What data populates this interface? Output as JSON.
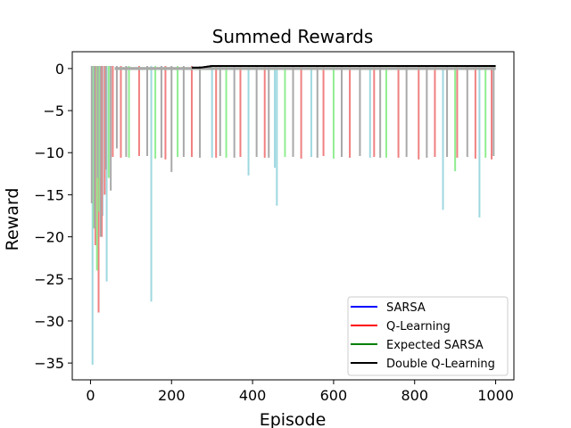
{
  "chart_data": {
    "type": "line",
    "title": "Summed Rewards",
    "xlabel": "Episode",
    "ylabel": "Reward",
    "xlim": [
      -45,
      1045
    ],
    "ylim": [
      -37,
      2
    ],
    "xticks": [
      0,
      200,
      400,
      600,
      800,
      1000
    ],
    "yticks": [
      0,
      -5,
      -10,
      -15,
      -20,
      -25,
      -30,
      -35
    ],
    "legend_position": "lower-right",
    "series": [
      {
        "name": "SARSA",
        "legend_color": "#0000ff",
        "color": "#9fd8e0",
        "values_description": "near 0 with sparse drops",
        "drops": [
          [
            5,
            -35.2
          ],
          [
            15,
            -18
          ],
          [
            30,
            -17.5
          ],
          [
            40,
            -25.3
          ],
          [
            150,
            -27.7
          ],
          [
            300,
            -10.6
          ],
          [
            390,
            -12.7
          ],
          [
            455,
            -11.8
          ],
          [
            460,
            -16.3
          ],
          [
            545,
            -10.5
          ],
          [
            690,
            -10.6
          ],
          [
            870,
            -16.8
          ],
          [
            960,
            -17.7
          ]
        ]
      },
      {
        "name": "Q-Learning",
        "legend_color": "#ff0000",
        "color": "#f08080",
        "drops": [
          [
            12,
            -21
          ],
          [
            20,
            -29
          ],
          [
            28,
            -20
          ],
          [
            35,
            -15
          ],
          [
            55,
            -10.5
          ],
          [
            75,
            -10.6
          ],
          [
            120,
            -10.4
          ],
          [
            185,
            -10.8
          ],
          [
            250,
            -10.5
          ],
          [
            310,
            -10.6
          ],
          [
            370,
            -10.5
          ],
          [
            430,
            -10.6
          ],
          [
            520,
            -10.7
          ],
          [
            575,
            -10.4
          ],
          [
            640,
            -10.6
          ],
          [
            700,
            -10.5
          ],
          [
            760,
            -10.6
          ],
          [
            810,
            -10.8
          ],
          [
            850,
            -10.5
          ],
          [
            905,
            -10.6
          ],
          [
            950,
            -10.7
          ],
          [
            990,
            -10.8
          ]
        ]
      },
      {
        "name": "Expected SARSA",
        "legend_color": "#008000",
        "color": "#90ee90",
        "drops": [
          [
            8,
            -19
          ],
          [
            16,
            -24
          ],
          [
            22,
            -17
          ],
          [
            45,
            -13
          ],
          [
            95,
            -10.6
          ],
          [
            160,
            -10.7
          ],
          [
            215,
            -10.5
          ],
          [
            335,
            -10.6
          ],
          [
            480,
            -10.5
          ],
          [
            600,
            -10.7
          ],
          [
            730,
            -10.6
          ],
          [
            900,
            -12.2
          ],
          [
            975,
            -10.6
          ]
        ]
      },
      {
        "name": "Double Q-Learning",
        "legend_color": "#000000",
        "color": "#000000",
        "x": [
          250,
          270,
          285,
          300,
          1000
        ],
        "values": [
          0.1,
          0.1,
          0.2,
          0.3,
          0.3
        ]
      },
      {
        "name": "",
        "color": "#a9a9a9",
        "drops": [
          [
            3,
            -16
          ],
          [
            10,
            -19
          ],
          [
            18,
            -13
          ],
          [
            25,
            -20
          ],
          [
            38,
            -12
          ],
          [
            50,
            -14.5
          ],
          [
            65,
            -9.5
          ],
          [
            88,
            -10.5
          ],
          [
            140,
            -10.4
          ],
          [
            175,
            -10.6
          ],
          [
            200,
            -12.3
          ],
          [
            230,
            -10.5
          ],
          [
            270,
            -10.6
          ],
          [
            320,
            -10.4
          ],
          [
            355,
            -10.6
          ],
          [
            410,
            -10.5
          ],
          [
            440,
            -10.6
          ],
          [
            500,
            -10.5
          ],
          [
            560,
            -10.6
          ],
          [
            620,
            -10.5
          ],
          [
            665,
            -10.4
          ],
          [
            715,
            -10.6
          ],
          [
            780,
            -10.5
          ],
          [
            830,
            -10.6
          ],
          [
            880,
            -10.5
          ],
          [
            930,
            -10.5
          ],
          [
            995,
            -10.4
          ]
        ]
      }
    ]
  }
}
